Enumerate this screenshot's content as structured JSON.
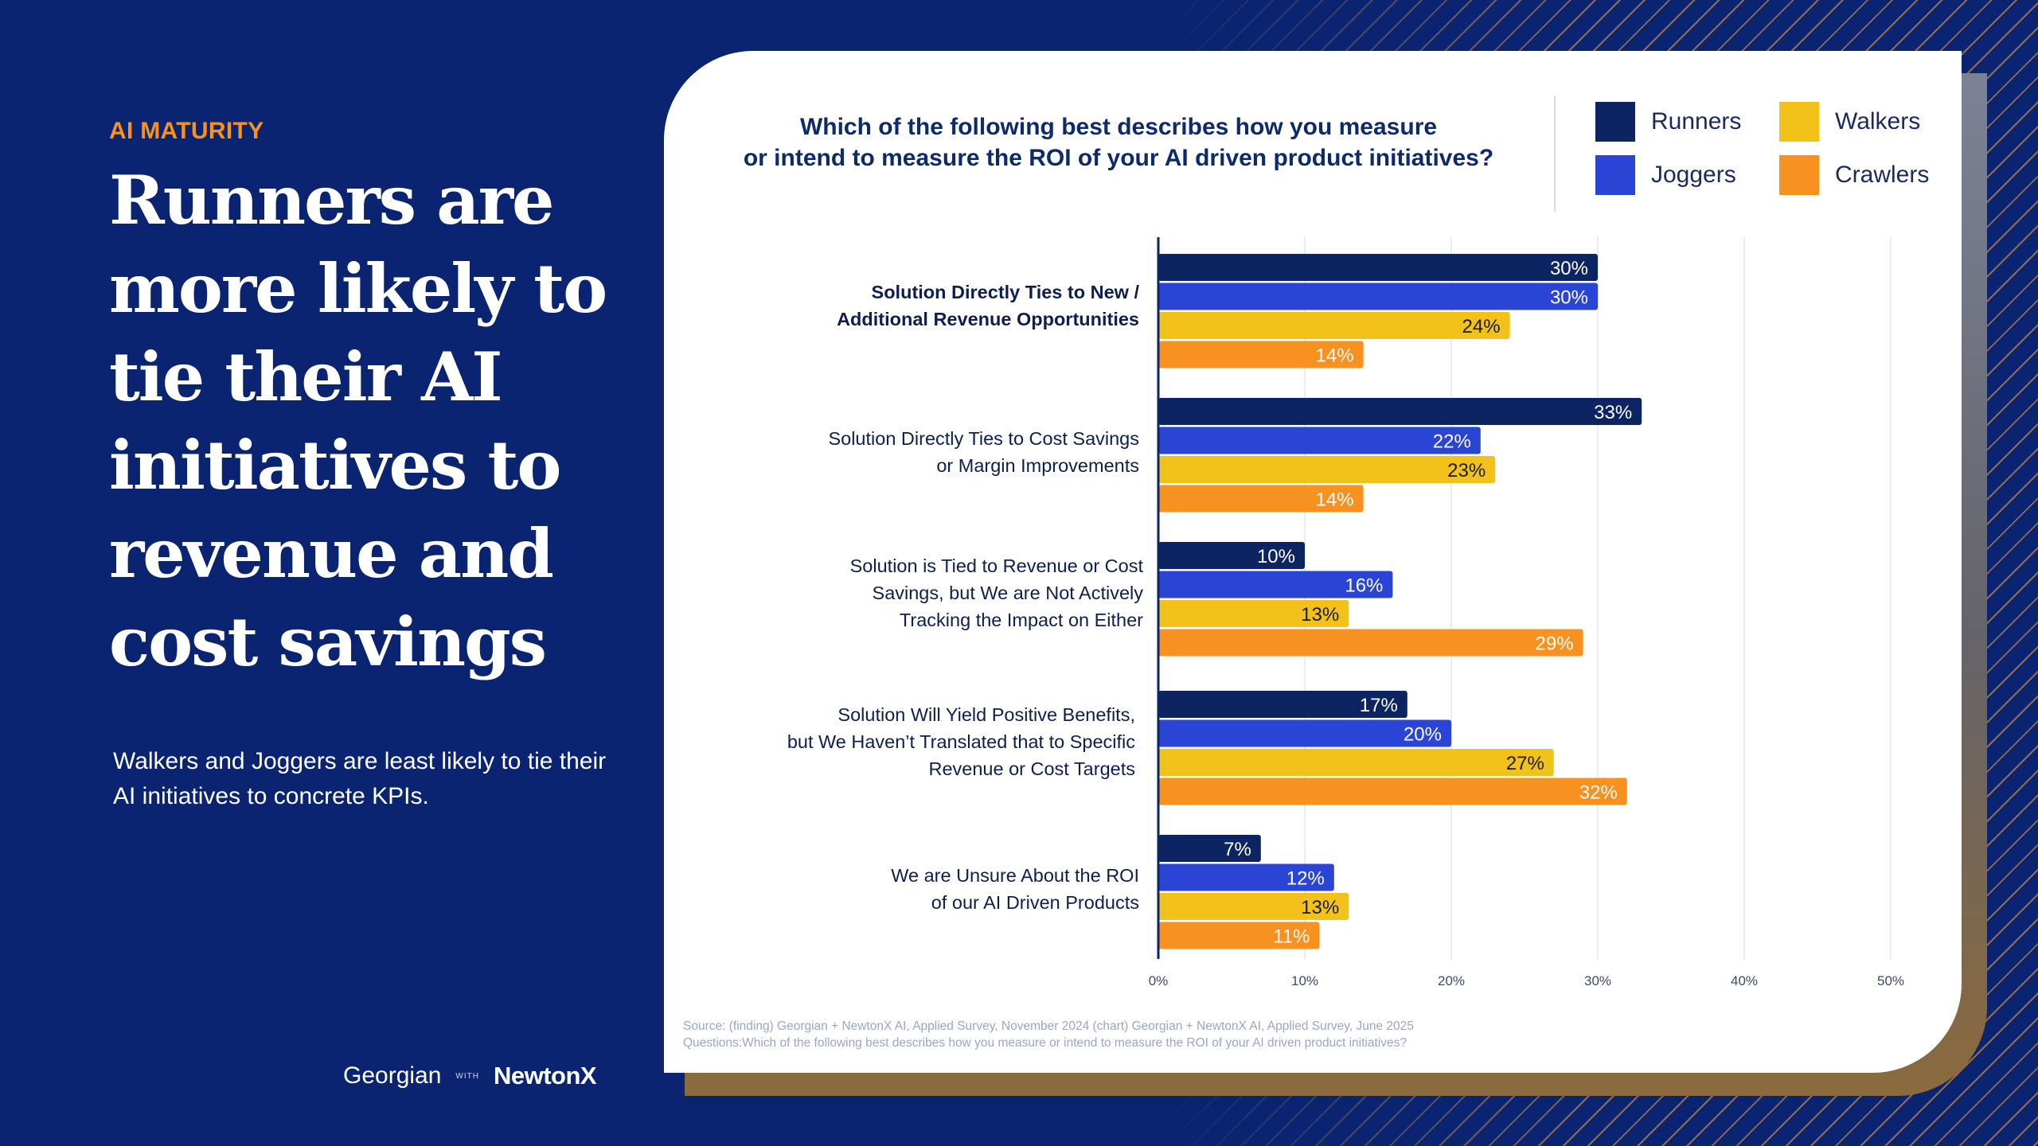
{
  "eyebrow": "AI MATURITY",
  "headline": "Runners are more likely to tie their AI initiatives to revenue and cost savings",
  "subtext": "Walkers and Joggers are least likely to tie their AI initiatives to concrete KPIs.",
  "brand": {
    "left": "Georgian",
    "with": "WITH",
    "right": "NewtonX"
  },
  "source": {
    "line1": "Source: (finding) Georgian + NewtonX AI, Applied Survey, November 2024 (chart) Georgian + NewtonX AI, Applied Survey, June 2025",
    "line2": "Questions:Which of the following best describes how you measure or intend to measure the ROI of your AI driven product initiatives?"
  },
  "colors": {
    "background": "#0b2472",
    "accent": "#f7931d"
  },
  "chart_data": {
    "type": "bar",
    "orientation": "horizontal",
    "title": "Which of the following best describes how you measure or intend to measure the ROI of your AI driven product initiatives?",
    "title_lines": [
      "Which of the following best describes how you measure",
      "or intend to measure the ROI of your AI driven product initiatives?"
    ],
    "categories": [
      [
        "Solution Directly Ties to New /",
        "Additional Revenue Opportunities"
      ],
      [
        "Solution Directly Ties to Cost Savings",
        "or Margin Improvements"
      ],
      [
        "Solution is Tied to Revenue or Cost",
        "Savings, but We are Not Actively",
        "Tracking the Impact on Either"
      ],
      [
        "Solution Will Yield Positive Benefits,",
        "but We Haven’t Translated that to Specific",
        "Revenue or Cost Targets"
      ],
      [
        "We are Unsure About the ROI",
        "of our AI Driven Products"
      ]
    ],
    "highlighted_category": 0,
    "series": [
      {
        "name": "Runners",
        "color": "#0d2462",
        "label_color": "#ffffff",
        "values": [
          30,
          33,
          10,
          17,
          7
        ]
      },
      {
        "name": "Joggers",
        "color": "#2a44d6",
        "label_color": "#ffffff",
        "values": [
          30,
          22,
          16,
          20,
          12
        ]
      },
      {
        "name": "Walkers",
        "color": "#f2c21b",
        "label_color": "#1a1a1a",
        "values": [
          24,
          23,
          13,
          27,
          13
        ]
      },
      {
        "name": "Crawlers",
        "color": "#f7911f",
        "label_color": "#ffffff",
        "values": [
          14,
          14,
          29,
          32,
          11
        ]
      }
    ],
    "value_suffix": "%",
    "xlim": [
      0,
      50
    ],
    "ticks": [
      0,
      10,
      20,
      30,
      40,
      50
    ],
    "tick_labels": [
      "0%",
      "10%",
      "20%",
      "30%",
      "40%",
      "50%"
    ],
    "grid": true,
    "legend_position": "top-right",
    "xlabel": "",
    "ylabel": ""
  }
}
